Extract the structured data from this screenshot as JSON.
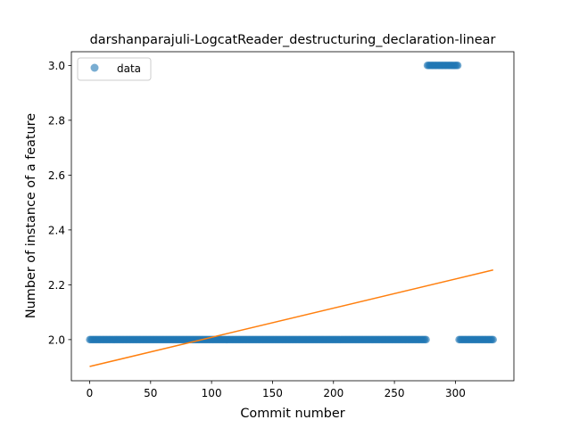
{
  "chart_data": {
    "type": "scatter",
    "title": "darshanparajuli-LogcatReader_destructuring_declaration-linear",
    "xlabel": "Commit number",
    "ylabel": "Number of instance of a feature",
    "xlim": [
      -15,
      348
    ],
    "ylim": [
      1.85,
      3.05
    ],
    "xticks": [
      0,
      50,
      100,
      150,
      200,
      250,
      300
    ],
    "xtick_labels": [
      "0",
      "50",
      "100",
      "150",
      "200",
      "250",
      "300"
    ],
    "yticks": [
      2.0,
      2.2,
      2.4,
      2.6,
      2.8,
      3.0
    ],
    "ytick_labels": [
      "2.0",
      "2.2",
      "2.4",
      "2.6",
      "2.8",
      "3.0"
    ],
    "grid": false,
    "legend": {
      "placement": "top-left",
      "entries": [
        "data"
      ]
    },
    "series": [
      {
        "name": "data",
        "kind": "scatter",
        "color": "#1f77b4",
        "alpha": 0.6,
        "segments": [
          {
            "x_start": 0,
            "x_end": 276,
            "y": 2.0
          },
          {
            "x_start": 277,
            "x_end": 302,
            "y": 3.0
          },
          {
            "x_start": 303,
            "x_end": 331,
            "y": 2.0
          }
        ]
      },
      {
        "kind": "line",
        "color": "#ff7f0e",
        "x": [
          0,
          331
        ],
        "y": [
          1.902,
          2.254
        ]
      }
    ]
  }
}
